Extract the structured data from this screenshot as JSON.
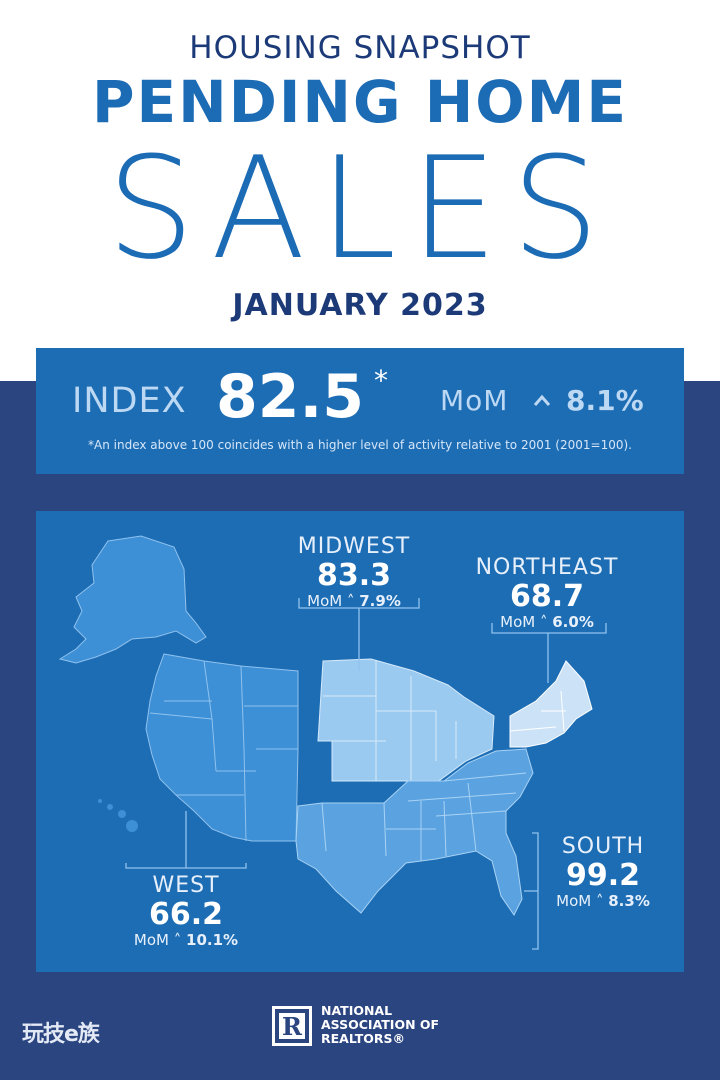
{
  "header": {
    "eyebrow": "HOUSING SNAPSHOT",
    "title_main": "PENDING HOME",
    "title_sub": "SALES",
    "date": "JANUARY 2023"
  },
  "index": {
    "label": "INDEX",
    "value": "82.5",
    "asterisk": "*",
    "mom_label": "MoM",
    "mom_direction": "up",
    "mom_value": "8.1%",
    "footnote": "*An index above 100 coincides with a higher level of activity relative to 2001 (2001=100)."
  },
  "regions": {
    "midwest": {
      "name": "MIDWEST",
      "value": "83.3",
      "mom_label": "MoM",
      "mom_value": "7.9%"
    },
    "northeast": {
      "name": "NORTHEAST",
      "value": "68.7",
      "mom_label": "MoM",
      "mom_value": "6.0%"
    },
    "west": {
      "name": "WEST",
      "value": "66.2",
      "mom_label": "MoM",
      "mom_value": "10.1%"
    },
    "south": {
      "name": "SOUTH",
      "value": "99.2",
      "mom_label": "MoM",
      "mom_value": "8.3%"
    }
  },
  "colors": {
    "navy": "#2b4580",
    "panel_blue": "#1d6db5",
    "title_blue": "#1c6bb5",
    "dark_title": "#1c3a78",
    "west_fill": "#3d8fd6",
    "midwest_fill": "#9bcaf0",
    "northeast_fill": "#cce3f7",
    "south_fill": "#5aa3e0"
  },
  "footer": {
    "watermark": "玩技e族",
    "org_line1": "NATIONAL",
    "org_line2": "ASSOCIATION OF",
    "org_line3": "REALTORS®",
    "logo_letter": "R"
  }
}
